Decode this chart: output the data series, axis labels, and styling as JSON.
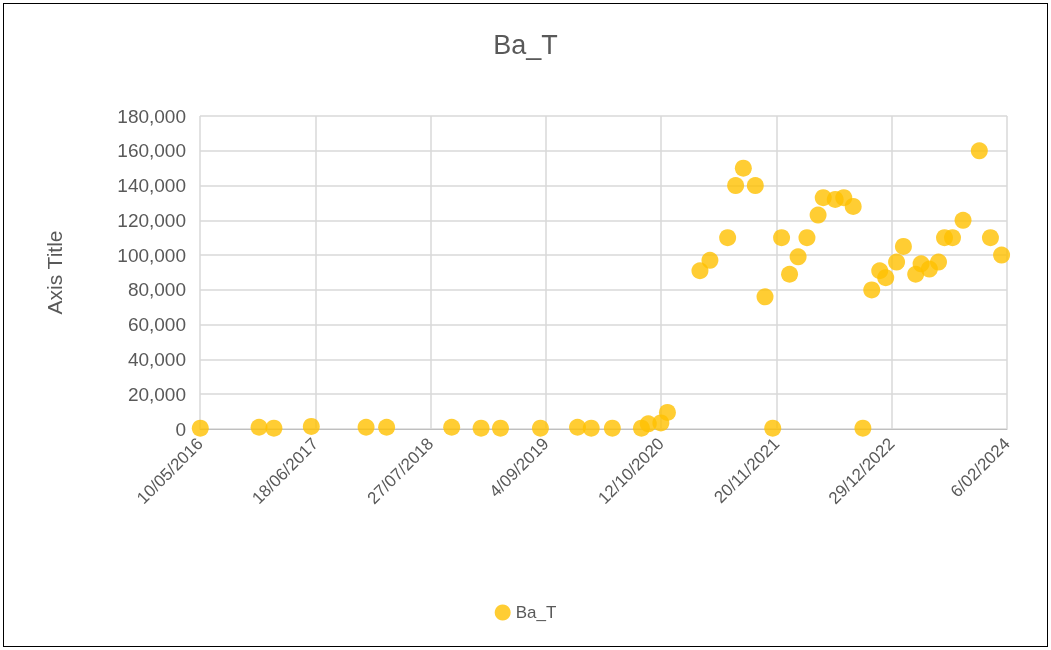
{
  "chart_data": {
    "type": "scatter",
    "title": "Ba_T",
    "ylabel": "Axis Title",
    "x": [
      "2016-05-11",
      "2016-12-03",
      "2017-01-24",
      "2017-06-04",
      "2017-12-13",
      "2018-02-23",
      "2018-10-09",
      "2019-01-20",
      "2019-03-29",
      "2019-08-16",
      "2019-12-24",
      "2020-02-10",
      "2020-04-24",
      "2020-08-04",
      "2020-08-28",
      "2020-10-11",
      "2020-11-03",
      "2021-02-25",
      "2021-04-01",
      "2021-06-02",
      "2021-06-30",
      "2021-07-27",
      "2021-09-07",
      "2021-10-11",
      "2021-11-07",
      "2021-12-08",
      "2022-01-05",
      "2022-02-04",
      "2022-03-07",
      "2022-04-15",
      "2022-05-03",
      "2022-06-14",
      "2022-07-14",
      "2022-08-16",
      "2022-09-19",
      "2022-10-20",
      "2022-11-17",
      "2022-12-08",
      "2023-01-15",
      "2023-02-08",
      "2023-03-23",
      "2023-04-11",
      "2023-05-10",
      "2023-06-11",
      "2023-07-02",
      "2023-07-30",
      "2023-09-05",
      "2023-11-01",
      "2023-12-10",
      "2024-01-18"
    ],
    "series": [
      {
        "name": "Ba_T",
        "color": "#ffc000",
        "values": [
          500,
          1000,
          500,
          1500,
          1000,
          1000,
          1000,
          500,
          500,
          500,
          1000,
          500,
          500,
          500,
          3000,
          3500,
          9500,
          91000,
          97000,
          110000,
          140000,
          150000,
          140000,
          76000,
          500,
          110000,
          89000,
          99000,
          110000,
          123000,
          133000,
          132000,
          133000,
          128000,
          500,
          80000,
          91000,
          87000,
          96000,
          105000,
          89000,
          95000,
          92000,
          96000,
          110000,
          110000,
          120000,
          160000,
          110000,
          100000
        ]
      }
    ],
    "xlim": [
      "2016-05-10",
      "2024-02-06"
    ],
    "xticks": [
      {
        "value": "2016-05-10",
        "label": "10/05/2016"
      },
      {
        "value": "2017-06-18",
        "label": "18/06/2017"
      },
      {
        "value": "2018-07-27",
        "label": "27/07/2018"
      },
      {
        "value": "2019-09-04",
        "label": "4/09/2019"
      },
      {
        "value": "2020-10-12",
        "label": "12/10/2020"
      },
      {
        "value": "2021-11-20",
        "label": "20/11/2021"
      },
      {
        "value": "2022-12-29",
        "label": "29/12/2022"
      },
      {
        "value": "2024-02-06",
        "label": "6/02/2024"
      }
    ],
    "ylim": [
      0,
      180000
    ],
    "yticks": [
      0,
      {
        "value": 20000,
        "label": "20,000"
      },
      {
        "value": 40000,
        "label": "40,000"
      },
      {
        "value": 60000,
        "label": "60,000"
      },
      {
        "value": 80000,
        "label": "80,000"
      },
      {
        "value": 100000,
        "label": "100,000"
      },
      {
        "value": 120000,
        "label": "120,000"
      },
      {
        "value": 140000,
        "label": "140,000"
      },
      {
        "value": 160000,
        "label": "160,000"
      },
      {
        "value": 180000,
        "label": "180,000"
      }
    ],
    "grid": true,
    "legend": "bottom",
    "marker": "circle"
  }
}
